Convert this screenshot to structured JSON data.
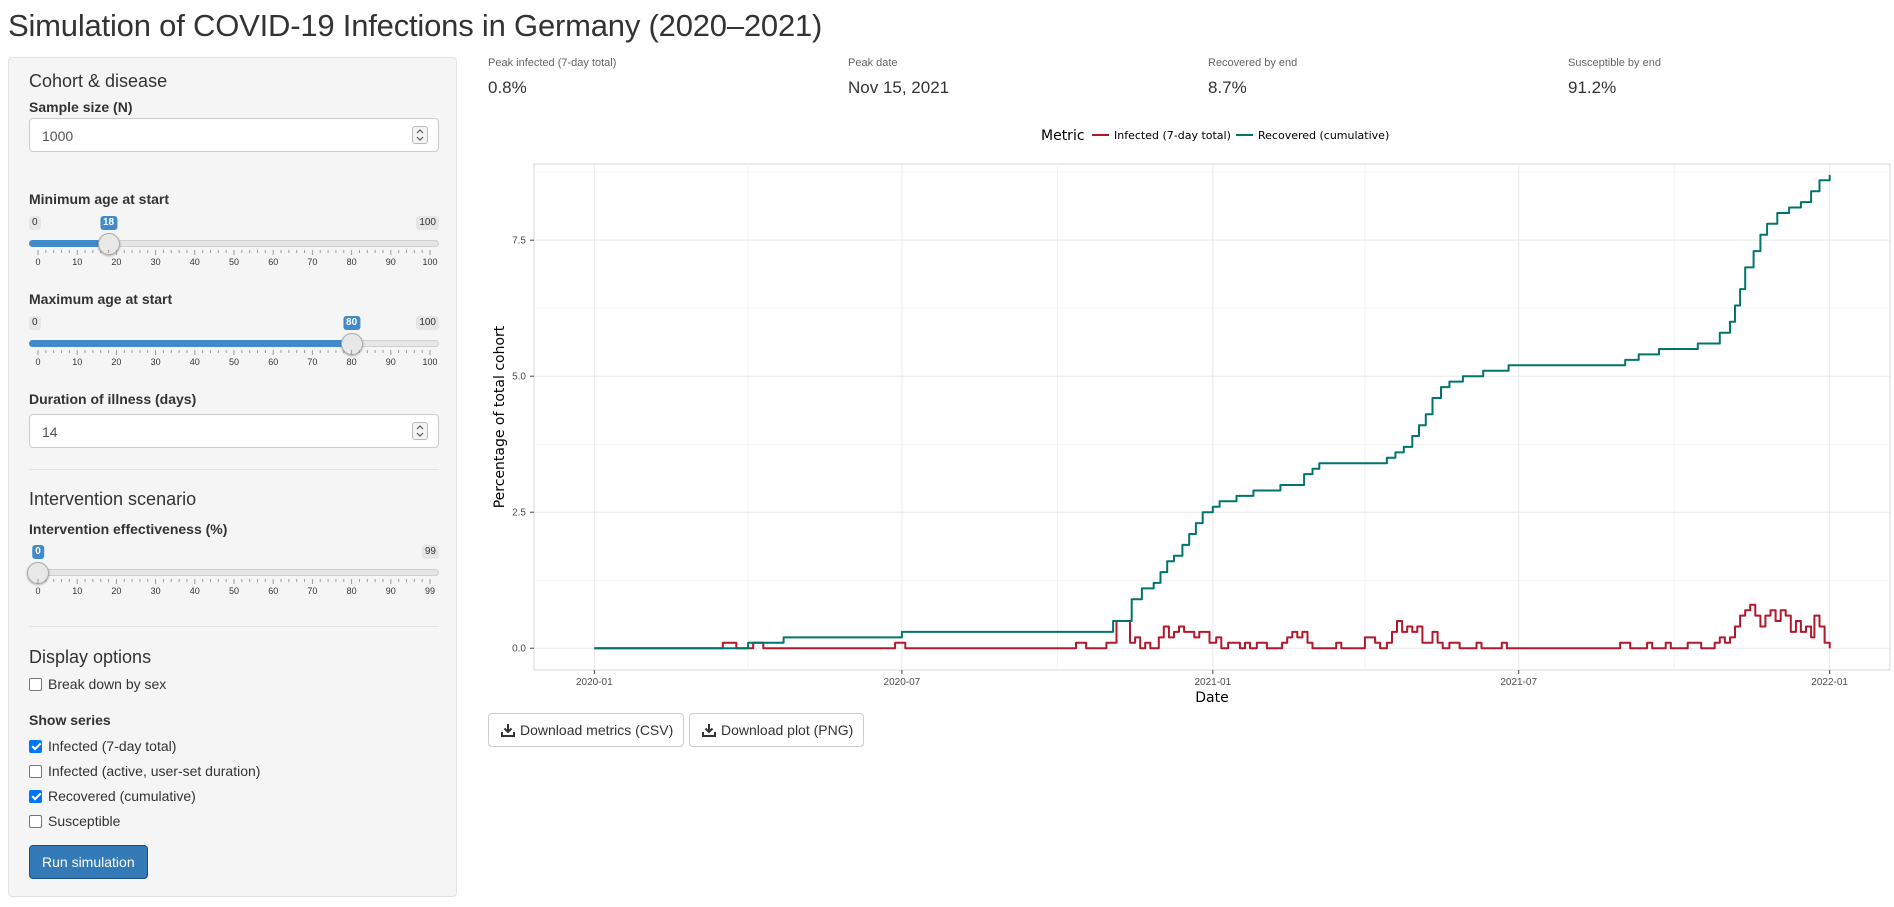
{
  "page": {
    "title": "Simulation of COVID-19 Infections in Germany (2020–2021)"
  },
  "sidebar": {
    "cohort_section": "Cohort & disease",
    "sample_size": {
      "label": "Sample size (N)",
      "value": "1000"
    },
    "min_age": {
      "label": "Minimum age at start",
      "min": "0",
      "max": "100",
      "value": "18",
      "ticks": [
        "0",
        "10",
        "20",
        "30",
        "40",
        "50",
        "60",
        "70",
        "80",
        "90",
        "100"
      ]
    },
    "max_age": {
      "label": "Maximum age at start",
      "min": "0",
      "max": "100",
      "value": "80",
      "ticks": [
        "0",
        "10",
        "20",
        "30",
        "40",
        "50",
        "60",
        "70",
        "80",
        "90",
        "100"
      ]
    },
    "duration": {
      "label": "Duration of illness (days)",
      "value": "14"
    },
    "intervention_section": "Intervention scenario",
    "effectiveness": {
      "label": "Intervention effectiveness (%)",
      "min": "0",
      "max": "99",
      "value": "0",
      "ticks": [
        "0",
        "10",
        "20",
        "30",
        "40",
        "50",
        "60",
        "70",
        "80",
        "90",
        "99"
      ]
    },
    "display_section": "Display options",
    "break_down_by_sex": {
      "label": "Break down by sex",
      "checked": false
    },
    "show_series": {
      "label": "Show series",
      "options": [
        {
          "label": "Infected (7-day total)",
          "checked": true
        },
        {
          "label": "Infected (active, user-set duration)",
          "checked": false
        },
        {
          "label": "Recovered (cumulative)",
          "checked": true
        },
        {
          "label": "Susceptible",
          "checked": false
        }
      ]
    },
    "run_button": "Run simulation"
  },
  "metrics": [
    {
      "label": "Peak infected (7-day total)",
      "value": "0.8%"
    },
    {
      "label": "Peak date",
      "value": "Nov 15, 2021"
    },
    {
      "label": "Recovered by end",
      "value": "8.7%"
    },
    {
      "label": "Susceptible by end",
      "value": "91.2%"
    }
  ],
  "buttons": {
    "download_metrics": "Download metrics (CSV)",
    "download_plot": "Download plot (PNG)"
  },
  "chart_data": {
    "type": "line",
    "xlabel": "Date",
    "ylabel": "Percentage of total cohort",
    "legend_title": "Metric",
    "legend_position": "top",
    "grid": true,
    "x_ticks": [
      "2020-01",
      "2020-07",
      "2021-01",
      "2021-07",
      "2022-01"
    ],
    "y_ticks": [
      "0.0",
      "2.5",
      "5.0",
      "7.5"
    ],
    "x_range": [
      "2020-01-01",
      "2022-01-01"
    ],
    "ylim": [
      -0.4,
      8.9
    ],
    "series": [
      {
        "name": "Infected (7-day total)",
        "color": "#b2182b",
        "points": [
          [
            "2020-01-01",
            0
          ],
          [
            "2020-03-15",
            0
          ],
          [
            "2020-03-17",
            0.1
          ],
          [
            "2020-03-23",
            0.1
          ],
          [
            "2020-03-25",
            0
          ],
          [
            "2020-04-02",
            0
          ],
          [
            "2020-04-04",
            0.1
          ],
          [
            "2020-04-08",
            0.1
          ],
          [
            "2020-04-10",
            0
          ],
          [
            "2020-06-25",
            0
          ],
          [
            "2020-06-27",
            0.1
          ],
          [
            "2020-07-01",
            0.1
          ],
          [
            "2020-07-03",
            0
          ],
          [
            "2020-10-10",
            0
          ],
          [
            "2020-10-12",
            0.1
          ],
          [
            "2020-10-16",
            0.1
          ],
          [
            "2020-10-18",
            0
          ],
          [
            "2020-10-28",
            0
          ],
          [
            "2020-10-30",
            0.1
          ],
          [
            "2020-11-03",
            0.1
          ],
          [
            "2020-11-05",
            0.5
          ],
          [
            "2020-11-10",
            0.5
          ],
          [
            "2020-11-13",
            0.1
          ],
          [
            "2020-11-16",
            0.2
          ],
          [
            "2020-11-19",
            0
          ],
          [
            "2020-11-22",
            0.1
          ],
          [
            "2020-11-25",
            0
          ],
          [
            "2020-11-30",
            0.2
          ],
          [
            "2020-12-03",
            0.4
          ],
          [
            "2020-12-06",
            0.2
          ],
          [
            "2020-12-09",
            0.3
          ],
          [
            "2020-12-12",
            0.4
          ],
          [
            "2020-12-15",
            0.3
          ],
          [
            "2020-12-18",
            0.3
          ],
          [
            "2020-12-21",
            0.2
          ],
          [
            "2020-12-24",
            0.3
          ],
          [
            "2020-12-27",
            0.3
          ],
          [
            "2020-12-30",
            0.1
          ],
          [
            "2021-01-03",
            0.2
          ],
          [
            "2021-01-06",
            0
          ],
          [
            "2021-01-10",
            0.1
          ],
          [
            "2021-01-14",
            0.1
          ],
          [
            "2021-01-17",
            0
          ],
          [
            "2021-01-20",
            0.1
          ],
          [
            "2021-01-23",
            0
          ],
          [
            "2021-01-27",
            0.1
          ],
          [
            "2021-01-30",
            0.1
          ],
          [
            "2021-02-02",
            0
          ],
          [
            "2021-02-08",
            0
          ],
          [
            "2021-02-11",
            0.1
          ],
          [
            "2021-02-14",
            0.2
          ],
          [
            "2021-02-17",
            0.3
          ],
          [
            "2021-02-20",
            0.2
          ],
          [
            "2021-02-23",
            0.3
          ],
          [
            "2021-02-26",
            0.1
          ],
          [
            "2021-03-01",
            0
          ],
          [
            "2021-03-12",
            0
          ],
          [
            "2021-03-15",
            0.1
          ],
          [
            "2021-03-18",
            0
          ],
          [
            "2021-03-29",
            0
          ],
          [
            "2021-04-01",
            0.2
          ],
          [
            "2021-04-04",
            0.2
          ],
          [
            "2021-04-07",
            0.1
          ],
          [
            "2021-04-10",
            0
          ],
          [
            "2021-04-14",
            0.1
          ],
          [
            "2021-04-17",
            0.3
          ],
          [
            "2021-04-20",
            0.5
          ],
          [
            "2021-04-23",
            0.3
          ],
          [
            "2021-04-26",
            0.4
          ],
          [
            "2021-04-29",
            0.3
          ],
          [
            "2021-05-02",
            0.4
          ],
          [
            "2021-05-05",
            0.1
          ],
          [
            "2021-05-08",
            0.1
          ],
          [
            "2021-05-11",
            0.3
          ],
          [
            "2021-05-14",
            0.1
          ],
          [
            "2021-05-17",
            0
          ],
          [
            "2021-05-21",
            0.1
          ],
          [
            "2021-05-24",
            0.1
          ],
          [
            "2021-05-27",
            0
          ],
          [
            "2021-06-03",
            0
          ],
          [
            "2021-06-06",
            0.1
          ],
          [
            "2021-06-09",
            0
          ],
          [
            "2021-06-18",
            0
          ],
          [
            "2021-06-21",
            0.1
          ],
          [
            "2021-06-24",
            0
          ],
          [
            "2021-08-27",
            0
          ],
          [
            "2021-08-30",
            0.1
          ],
          [
            "2021-09-02",
            0.1
          ],
          [
            "2021-09-05",
            0
          ],
          [
            "2021-09-12",
            0
          ],
          [
            "2021-09-15",
            0.1
          ],
          [
            "2021-09-18",
            0
          ],
          [
            "2021-09-23",
            0
          ],
          [
            "2021-09-26",
            0.1
          ],
          [
            "2021-09-29",
            0
          ],
          [
            "2021-10-06",
            0
          ],
          [
            "2021-10-09",
            0.1
          ],
          [
            "2021-10-14",
            0.1
          ],
          [
            "2021-10-17",
            0
          ],
          [
            "2021-10-22",
            0
          ],
          [
            "2021-10-25",
            0.1
          ],
          [
            "2021-10-28",
            0.2
          ],
          [
            "2021-10-31",
            0.1
          ],
          [
            "2021-11-03",
            0.2
          ],
          [
            "2021-11-06",
            0.4
          ],
          [
            "2021-11-09",
            0.6
          ],
          [
            "2021-11-12",
            0.7
          ],
          [
            "2021-11-15",
            0.8
          ],
          [
            "2021-11-18",
            0.6
          ],
          [
            "2021-11-21",
            0.4
          ],
          [
            "2021-11-24",
            0.6
          ],
          [
            "2021-11-27",
            0.7
          ],
          [
            "2021-11-30",
            0.5
          ],
          [
            "2021-12-03",
            0.7
          ],
          [
            "2021-12-06",
            0.6
          ],
          [
            "2021-12-09",
            0.3
          ],
          [
            "2021-12-12",
            0.5
          ],
          [
            "2021-12-15",
            0.3
          ],
          [
            "2021-12-18",
            0.4
          ],
          [
            "2021-12-21",
            0.2
          ],
          [
            "2021-12-23",
            0.6
          ],
          [
            "2021-12-26",
            0.4
          ],
          [
            "2021-12-29",
            0.1
          ],
          [
            "2022-01-01",
            0
          ]
        ]
      },
      {
        "name": "Recovered (cumulative)",
        "color": "#01756c",
        "points": [
          [
            "2020-01-01",
            0
          ],
          [
            "2020-03-29",
            0
          ],
          [
            "2020-04-01",
            0.1
          ],
          [
            "2020-04-20",
            0.1
          ],
          [
            "2020-04-22",
            0.2
          ],
          [
            "2020-06-29",
            0.2
          ],
          [
            "2020-07-01",
            0.3
          ],
          [
            "2020-10-30",
            0.3
          ],
          [
            "2020-11-03",
            0.5
          ],
          [
            "2020-11-10",
            0.5
          ],
          [
            "2020-11-14",
            0.9
          ],
          [
            "2020-11-20",
            1.1
          ],
          [
            "2020-11-27",
            1.2
          ],
          [
            "2020-12-01",
            1.4
          ],
          [
            "2020-12-05",
            1.6
          ],
          [
            "2020-12-09",
            1.7
          ],
          [
            "2020-12-14",
            1.9
          ],
          [
            "2020-12-18",
            2.1
          ],
          [
            "2020-12-22",
            2.3
          ],
          [
            "2020-12-26",
            2.5
          ],
          [
            "2021-01-01",
            2.6
          ],
          [
            "2021-01-05",
            2.7
          ],
          [
            "2021-01-15",
            2.8
          ],
          [
            "2021-01-25",
            2.9
          ],
          [
            "2021-02-10",
            3.0
          ],
          [
            "2021-02-24",
            3.2
          ],
          [
            "2021-03-01",
            3.3
          ],
          [
            "2021-03-05",
            3.4
          ],
          [
            "2021-04-14",
            3.5
          ],
          [
            "2021-04-19",
            3.6
          ],
          [
            "2021-04-24",
            3.7
          ],
          [
            "2021-04-29",
            3.9
          ],
          [
            "2021-05-03",
            4.1
          ],
          [
            "2021-05-07",
            4.3
          ],
          [
            "2021-05-11",
            4.6
          ],
          [
            "2021-05-16",
            4.8
          ],
          [
            "2021-05-21",
            4.9
          ],
          [
            "2021-05-29",
            5.0
          ],
          [
            "2021-06-10",
            5.1
          ],
          [
            "2021-06-25",
            5.2
          ],
          [
            "2021-08-29",
            5.2
          ],
          [
            "2021-09-02",
            5.3
          ],
          [
            "2021-09-10",
            5.4
          ],
          [
            "2021-09-22",
            5.5
          ],
          [
            "2021-10-15",
            5.6
          ],
          [
            "2021-10-28",
            5.8
          ],
          [
            "2021-11-03",
            6.0
          ],
          [
            "2021-11-06",
            6.3
          ],
          [
            "2021-11-09",
            6.6
          ],
          [
            "2021-11-12",
            7.0
          ],
          [
            "2021-11-17",
            7.3
          ],
          [
            "2021-11-21",
            7.6
          ],
          [
            "2021-11-25",
            7.8
          ],
          [
            "2021-12-01",
            8.0
          ],
          [
            "2021-12-08",
            8.1
          ],
          [
            "2021-12-15",
            8.2
          ],
          [
            "2021-12-21",
            8.4
          ],
          [
            "2021-12-26",
            8.6
          ],
          [
            "2022-01-01",
            8.7
          ]
        ]
      }
    ]
  }
}
